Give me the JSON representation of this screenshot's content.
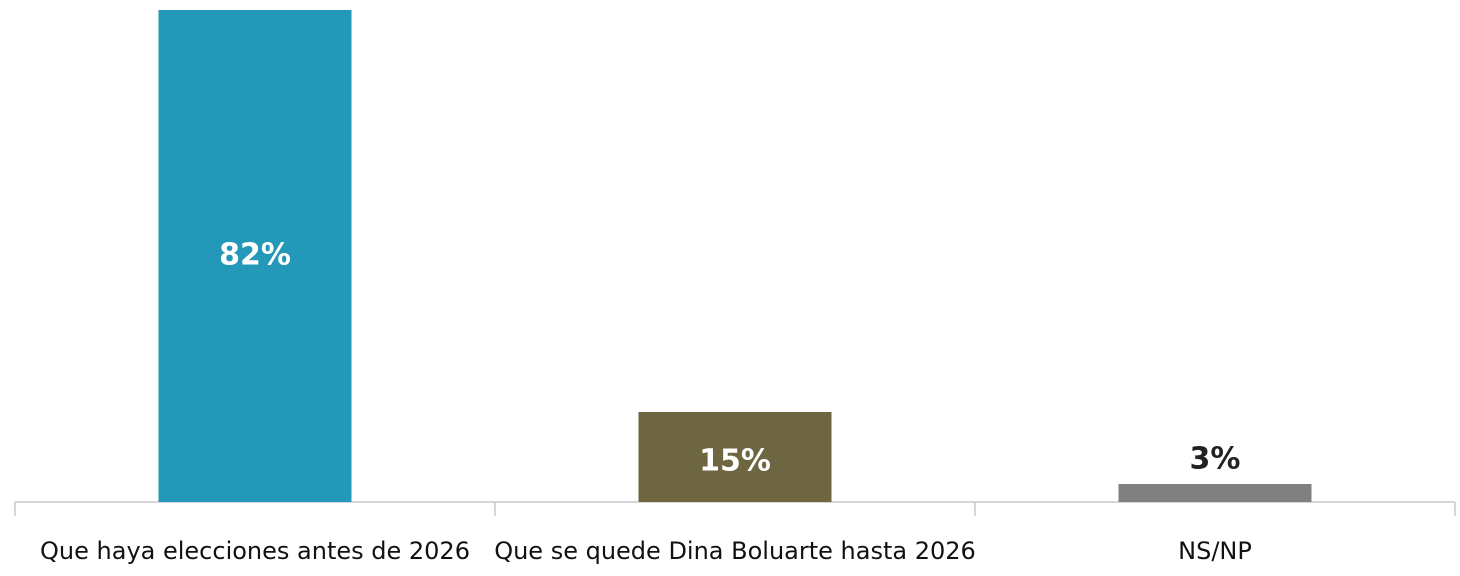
{
  "chart_data": {
    "type": "bar",
    "categories": [
      "Que haya elecciones antes de 2026",
      "Que se quede Dina Boluarte hasta 2026",
      "NS/NP"
    ],
    "values": [
      82,
      15,
      3
    ],
    "value_labels": [
      "82%",
      "15%",
      "3%"
    ],
    "colors": [
      "#2398b8",
      "#6e6640",
      "#808080"
    ]
  }
}
